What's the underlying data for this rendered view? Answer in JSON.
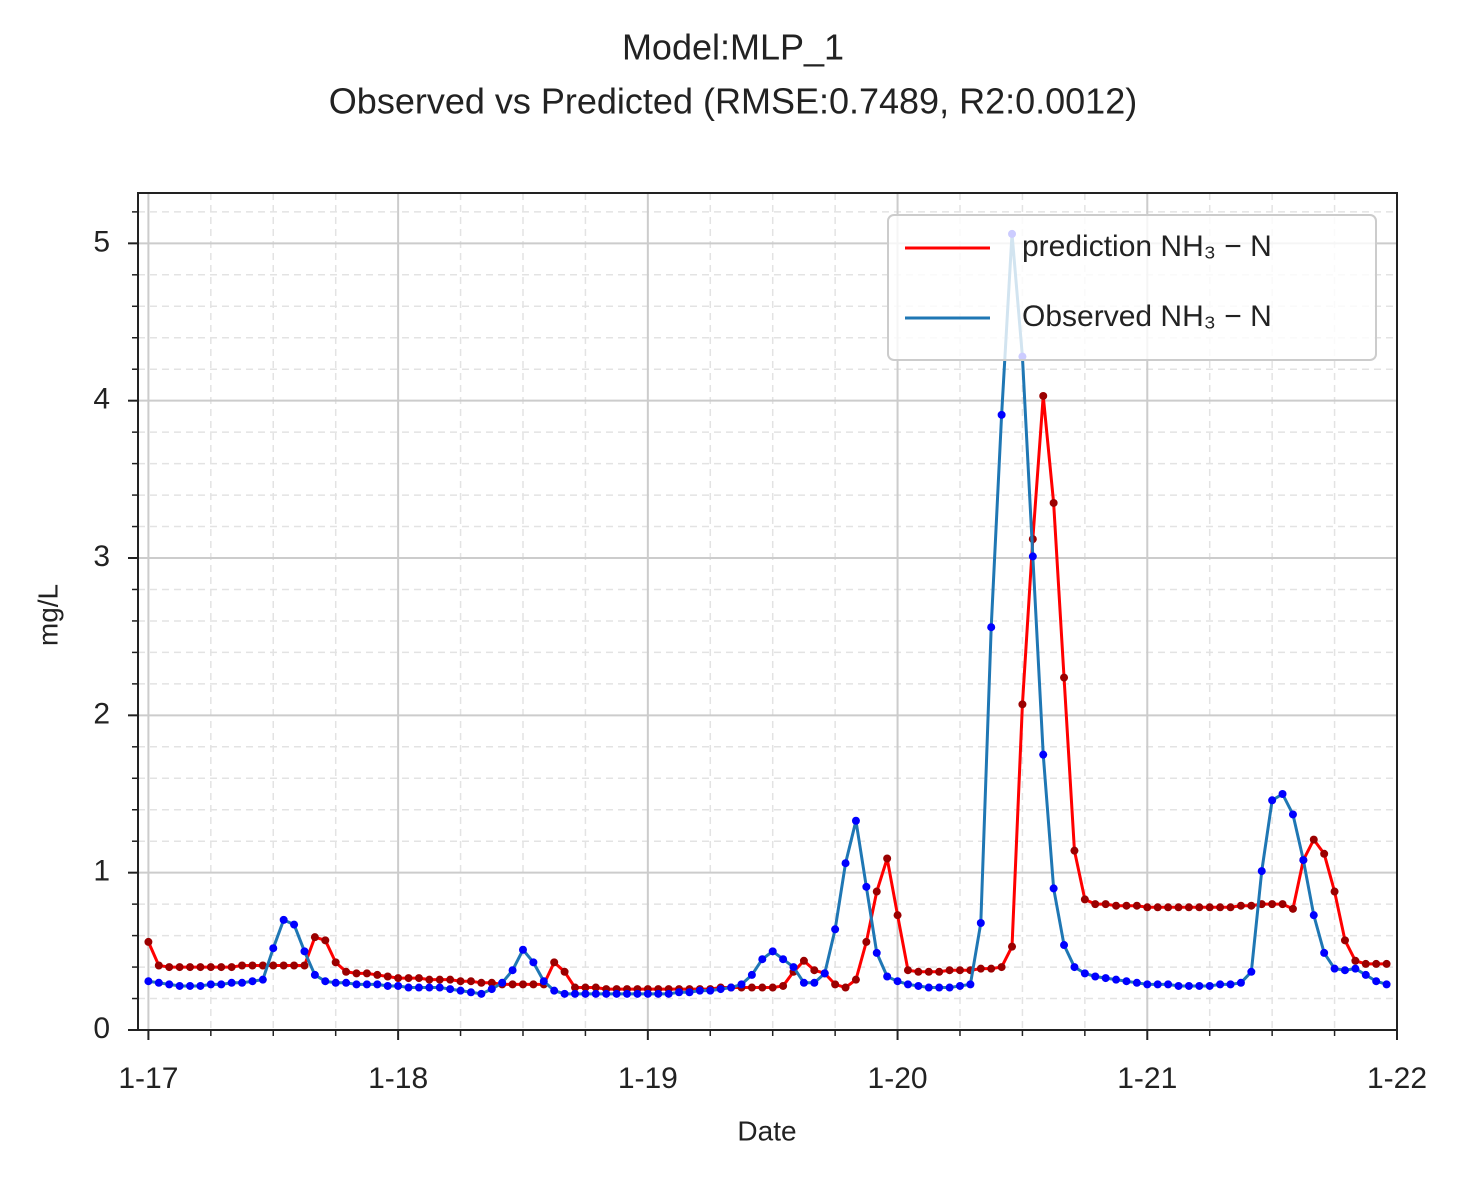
{
  "chart_data": {
    "type": "line",
    "title": "Model:MLP_1",
    "subtitle": "Observed vs Predicted (RMSE:0.7489, R2:0.0012)",
    "x_label": "Date",
    "y_label": "mg/L",
    "x": [
      0,
      1,
      2,
      3,
      4,
      5,
      6,
      7,
      8,
      9,
      10,
      11,
      12,
      13,
      14,
      15,
      16,
      17,
      18,
      19,
      20,
      21,
      22,
      23,
      24,
      25,
      26,
      27,
      28,
      29,
      30,
      31,
      32,
      33,
      34,
      35,
      36,
      37,
      38,
      39,
      40,
      41,
      42,
      43,
      44,
      45,
      46,
      47,
      48,
      49,
      50,
      51,
      52,
      53,
      54,
      55,
      56,
      57,
      58,
      59,
      60,
      61,
      62,
      63,
      64,
      65,
      66,
      67,
      68,
      69,
      70,
      71,
      72,
      73,
      74,
      75,
      76,
      77,
      78,
      79,
      80,
      81,
      82,
      83,
      84,
      85,
      86,
      87,
      88,
      89,
      90,
      91,
      92,
      93,
      94,
      95,
      96,
      97,
      98,
      99,
      100,
      101,
      102,
      103,
      104,
      105,
      106,
      107,
      108,
      109,
      110,
      111,
      112,
      113,
      114,
      115,
      116,
      117,
      118,
      119
    ],
    "series": [
      {
        "name": "prediction NH₃ − N",
        "color": "#ff0000",
        "marker_color": "#9b0000",
        "values": [
          0.56,
          0.41,
          0.4,
          0.4,
          0.4,
          0.4,
          0.4,
          0.4,
          0.4,
          0.41,
          0.41,
          0.41,
          0.41,
          0.41,
          0.41,
          0.41,
          0.59,
          0.57,
          0.43,
          0.37,
          0.36,
          0.36,
          0.35,
          0.34,
          0.33,
          0.33,
          0.33,
          0.32,
          0.32,
          0.32,
          0.31,
          0.31,
          0.3,
          0.3,
          0.29,
          0.29,
          0.29,
          0.29,
          0.29,
          0.43,
          0.37,
          0.27,
          0.27,
          0.27,
          0.26,
          0.26,
          0.26,
          0.26,
          0.26,
          0.26,
          0.26,
          0.26,
          0.26,
          0.26,
          0.26,
          0.27,
          0.27,
          0.27,
          0.27,
          0.27,
          0.27,
          0.28,
          0.37,
          0.44,
          0.38,
          0.36,
          0.29,
          0.27,
          0.32,
          0.56,
          0.88,
          1.09,
          0.73,
          0.38,
          0.37,
          0.37,
          0.37,
          0.38,
          0.38,
          0.38,
          0.39,
          0.39,
          0.4,
          0.53,
          2.07,
          3.12,
          4.03,
          3.35,
          2.24,
          1.14,
          0.83,
          0.8,
          0.8,
          0.79,
          0.79,
          0.79,
          0.78,
          0.78,
          0.78,
          0.78,
          0.78,
          0.78,
          0.78,
          0.78,
          0.78,
          0.79,
          0.79,
          0.8,
          0.8,
          0.8,
          0.77,
          1.08,
          1.21,
          1.12,
          0.88,
          0.57,
          0.44,
          0.42,
          0.42,
          0.42
        ]
      },
      {
        "name": "Observed NH₃ − N",
        "color": "#1f77b4",
        "marker_color": "#0000ff",
        "values": [
          0.31,
          0.3,
          0.29,
          0.28,
          0.28,
          0.28,
          0.29,
          0.29,
          0.3,
          0.3,
          0.31,
          0.32,
          0.52,
          0.7,
          0.67,
          0.5,
          0.35,
          0.31,
          0.3,
          0.3,
          0.29,
          0.29,
          0.29,
          0.28,
          0.28,
          0.27,
          0.27,
          0.27,
          0.27,
          0.26,
          0.25,
          0.24,
          0.23,
          0.26,
          0.3,
          0.38,
          0.51,
          0.43,
          0.31,
          0.25,
          0.23,
          0.23,
          0.23,
          0.23,
          0.23,
          0.23,
          0.23,
          0.23,
          0.23,
          0.23,
          0.23,
          0.24,
          0.24,
          0.25,
          0.25,
          0.26,
          0.27,
          0.29,
          0.35,
          0.45,
          0.5,
          0.45,
          0.4,
          0.3,
          0.3,
          0.36,
          0.64,
          1.06,
          1.33,
          0.91,
          0.49,
          0.34,
          0.31,
          0.29,
          0.28,
          0.27,
          0.27,
          0.27,
          0.28,
          0.29,
          0.68,
          2.56,
          3.91,
          5.06,
          4.28,
          3.01,
          1.75,
          0.9,
          0.54,
          0.4,
          0.36,
          0.34,
          0.33,
          0.32,
          0.31,
          0.3,
          0.29,
          0.29,
          0.29,
          0.28,
          0.28,
          0.28,
          0.28,
          0.29,
          0.29,
          0.3,
          0.37,
          1.01,
          1.46,
          1.5,
          1.37,
          1.08,
          0.73,
          0.49,
          0.39,
          0.38,
          0.39,
          0.35,
          0.31,
          0.29
        ]
      }
    ],
    "xlim": [
      -1,
      120
    ],
    "xticks": [
      {
        "value": 0,
        "label": "1-17"
      },
      {
        "value": 24,
        "label": "1-18"
      },
      {
        "value": 48,
        "label": "1-19"
      },
      {
        "value": 72,
        "label": "1-20"
      },
      {
        "value": 96,
        "label": "1-21"
      },
      {
        "value": 120,
        "label": "1-22"
      }
    ],
    "ylim": [
      0,
      5.32
    ],
    "yticks": [
      0,
      1,
      2,
      3,
      4,
      5
    ],
    "grid": true,
    "minor_grid": true,
    "legend": "upper right"
  }
}
